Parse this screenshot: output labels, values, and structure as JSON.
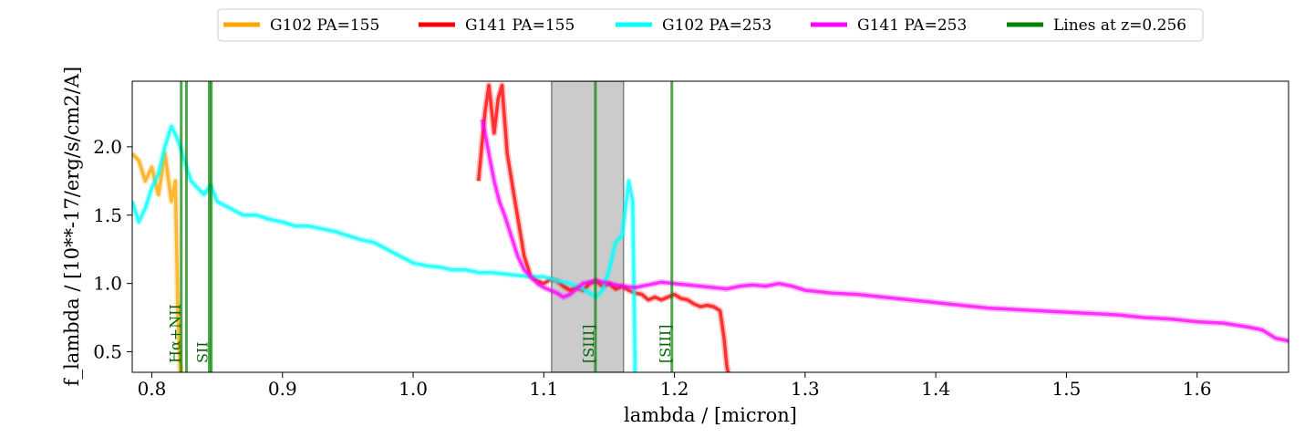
{
  "chart_data": {
    "type": "line",
    "xlabel": "lambda / [micron]",
    "ylabel": "f_lambda / [10**-17/erg/s/cm2/A]",
    "xlim": [
      0.785,
      1.67
    ],
    "ylim": [
      0.35,
      2.48
    ],
    "xticks": [
      0.8,
      0.9,
      1.0,
      1.1,
      1.2,
      1.3,
      1.4,
      1.5,
      1.6
    ],
    "xtick_labels": [
      "0.8",
      "0.9",
      "1.0",
      "1.1",
      "1.2",
      "1.3",
      "1.4",
      "1.5",
      "1.6"
    ],
    "yticks": [
      0.5,
      1.0,
      1.5,
      2.0
    ],
    "ytick_labels": [
      "0.5",
      "1.0",
      "1.5",
      "2.0"
    ],
    "grid": false,
    "legend_position": "top-center",
    "series": [
      {
        "name": "G102 PA=155",
        "color": "#ffa500",
        "x": [
          0.785,
          0.79,
          0.795,
          0.8,
          0.805,
          0.81,
          0.815,
          0.818,
          0.82,
          0.822
        ],
        "y": [
          1.95,
          1.9,
          1.75,
          1.85,
          1.65,
          1.95,
          1.6,
          1.75,
          0.8,
          0.3
        ]
      },
      {
        "name": "G141 PA=155",
        "color": "#ff0000",
        "x": [
          1.05,
          1.055,
          1.058,
          1.062,
          1.065,
          1.068,
          1.072,
          1.078,
          1.085,
          1.09,
          1.095,
          1.1,
          1.105,
          1.11,
          1.115,
          1.12,
          1.125,
          1.13,
          1.135,
          1.14,
          1.145,
          1.15,
          1.155,
          1.16,
          1.165,
          1.17,
          1.175,
          1.18,
          1.185,
          1.19,
          1.195,
          1.2,
          1.205,
          1.21,
          1.215,
          1.22,
          1.225,
          1.23,
          1.235,
          1.238,
          1.24,
          1.242
        ],
        "y": [
          1.75,
          2.25,
          2.45,
          2.1,
          2.35,
          2.45,
          1.95,
          1.6,
          1.2,
          1.05,
          1.02,
          1.0,
          1.03,
          1.02,
          0.98,
          0.95,
          0.97,
          0.95,
          1.0,
          1.02,
          0.98,
          1.0,
          0.96,
          0.98,
          0.95,
          0.93,
          0.92,
          0.88,
          0.9,
          0.88,
          0.9,
          0.92,
          0.89,
          0.88,
          0.85,
          0.83,
          0.84,
          0.83,
          0.8,
          0.6,
          0.4,
          0.3
        ]
      },
      {
        "name": "G102 PA=253",
        "color": "#00ffff",
        "x": [
          0.785,
          0.79,
          0.795,
          0.8,
          0.805,
          0.81,
          0.815,
          0.82,
          0.825,
          0.83,
          0.835,
          0.84,
          0.845,
          0.85,
          0.86,
          0.87,
          0.88,
          0.89,
          0.9,
          0.91,
          0.92,
          0.93,
          0.94,
          0.95,
          0.96,
          0.97,
          0.98,
          0.99,
          1.0,
          1.01,
          1.02,
          1.03,
          1.04,
          1.05,
          1.06,
          1.07,
          1.08,
          1.09,
          1.1,
          1.11,
          1.12,
          1.13,
          1.135,
          1.14,
          1.145,
          1.15,
          1.155,
          1.16,
          1.165,
          1.168,
          1.17
        ],
        "y": [
          1.6,
          1.45,
          1.55,
          1.7,
          1.8,
          2.0,
          2.15,
          2.05,
          1.9,
          1.75,
          1.7,
          1.65,
          1.72,
          1.6,
          1.55,
          1.5,
          1.5,
          1.47,
          1.45,
          1.42,
          1.42,
          1.4,
          1.38,
          1.35,
          1.32,
          1.3,
          1.25,
          1.2,
          1.15,
          1.13,
          1.12,
          1.1,
          1.1,
          1.08,
          1.08,
          1.07,
          1.06,
          1.05,
          1.05,
          1.02,
          1.0,
          0.96,
          0.93,
          0.9,
          0.95,
          1.1,
          1.3,
          1.35,
          1.75,
          1.6,
          0.3
        ]
      },
      {
        "name": "G141 PA=253",
        "color": "#ff00ff",
        "x": [
          1.053,
          1.058,
          1.062,
          1.066,
          1.07,
          1.075,
          1.08,
          1.085,
          1.09,
          1.095,
          1.1,
          1.105,
          1.11,
          1.115,
          1.12,
          1.125,
          1.13,
          1.14,
          1.15,
          1.16,
          1.17,
          1.18,
          1.19,
          1.2,
          1.21,
          1.22,
          1.23,
          1.24,
          1.25,
          1.26,
          1.27,
          1.28,
          1.29,
          1.3,
          1.32,
          1.34,
          1.36,
          1.38,
          1.4,
          1.42,
          1.44,
          1.46,
          1.48,
          1.5,
          1.52,
          1.54,
          1.56,
          1.58,
          1.6,
          1.62,
          1.64,
          1.65,
          1.66,
          1.67
        ],
        "y": [
          2.2,
          1.95,
          1.75,
          1.6,
          1.5,
          1.35,
          1.2,
          1.1,
          1.05,
          1.0,
          0.97,
          0.95,
          0.93,
          0.9,
          0.92,
          0.96,
          1.0,
          1.02,
          1.0,
          0.98,
          0.97,
          0.99,
          1.01,
          1.0,
          0.99,
          0.98,
          0.97,
          0.96,
          0.98,
          0.99,
          0.98,
          1.0,
          0.98,
          0.95,
          0.93,
          0.92,
          0.9,
          0.88,
          0.86,
          0.84,
          0.82,
          0.81,
          0.8,
          0.79,
          0.78,
          0.77,
          0.75,
          0.74,
          0.72,
          0.71,
          0.68,
          0.66,
          0.6,
          0.58
        ]
      },
      {
        "name": "Lines at z=0.256",
        "color": "#008000",
        "lines": [
          0.8225,
          0.8265,
          0.844,
          0.8455,
          1.1395,
          1.198
        ]
      }
    ],
    "shaded_region": {
      "x": [
        1.106,
        1.161
      ],
      "color": "#a0a0a0"
    },
    "annotations": [
      {
        "text": "Hα+NII",
        "x": 0.8175
      },
      {
        "text": "SII",
        "x": 0.8385
      },
      {
        "text": "[SIII]",
        "x": 1.134
      },
      {
        "text": "[SIII]",
        "x": 1.1925
      }
    ]
  }
}
